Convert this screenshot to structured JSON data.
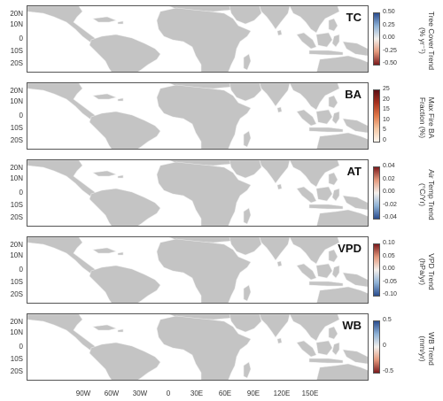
{
  "panels": [
    {
      "tag": "TC",
      "title_lines": [
        "Tree Cover Trend",
        "(% yr⁻¹)"
      ],
      "ticks": [
        "0.50",
        "0.25",
        "0.00",
        "-0.25",
        "-0.50"
      ],
      "colormap": "diverging-red-blue",
      "gradient": [
        "#2a4d8f",
        "#8fb2d6",
        "#f4f0ec",
        "#e3997d",
        "#7c1a1c"
      ]
    },
    {
      "tag": "BA",
      "title_lines": [
        "Max Fire BA",
        "Fraction (%)"
      ],
      "ticks": [
        "25",
        "20",
        "15",
        "10",
        "5",
        "0"
      ],
      "colormap": "sequential-reds",
      "gradient": [
        "#5d0f14",
        "#a8321f",
        "#e07849",
        "#f5c7a3",
        "#fff7ef"
      ]
    },
    {
      "tag": "AT",
      "title_lines": [
        "Air Temp Trend",
        "(°C/Yr)"
      ],
      "ticks": [
        "0.04",
        "0.02",
        "0.00",
        "-0.02",
        "-0.04"
      ],
      "colormap": "diverging-red-blue",
      "gradient": [
        "#7c1a1c",
        "#e3997d",
        "#f4f0ec",
        "#8fb2d6",
        "#2a4d8f"
      ]
    },
    {
      "tag": "VPD",
      "title_lines": [
        "VPD Trend",
        "(hPa/yr)"
      ],
      "ticks": [
        "0.10",
        "0.05",
        "0.00",
        "-0.05",
        "-0.10"
      ],
      "colormap": "diverging-red-blue",
      "gradient": [
        "#7c1a1c",
        "#e3997d",
        "#f4f0ec",
        "#8fb2d6",
        "#2a4d8f"
      ]
    },
    {
      "tag": "WB",
      "title_lines": [
        "WB Trend",
        "(mm/yr)"
      ],
      "ticks": [
        "0.5",
        "0",
        "-0.5"
      ],
      "colormap": "diverging-red-blue",
      "gradient": [
        "#2a4d8f",
        "#8fb2d6",
        "#f4f0ec",
        "#e3997d",
        "#7c1a1c"
      ]
    }
  ],
  "latitude_labels": [
    "20N",
    "10N",
    "0",
    "10S",
    "20S"
  ],
  "longitude_labels": [
    "90W",
    "60W",
    "30W",
    "0",
    "30E",
    "60E",
    "90E",
    "120E",
    "150E"
  ],
  "colors": {
    "land": "#c4c4c4",
    "ocean": "#ffffff",
    "border": "#ededed",
    "frame": "#555555"
  }
}
